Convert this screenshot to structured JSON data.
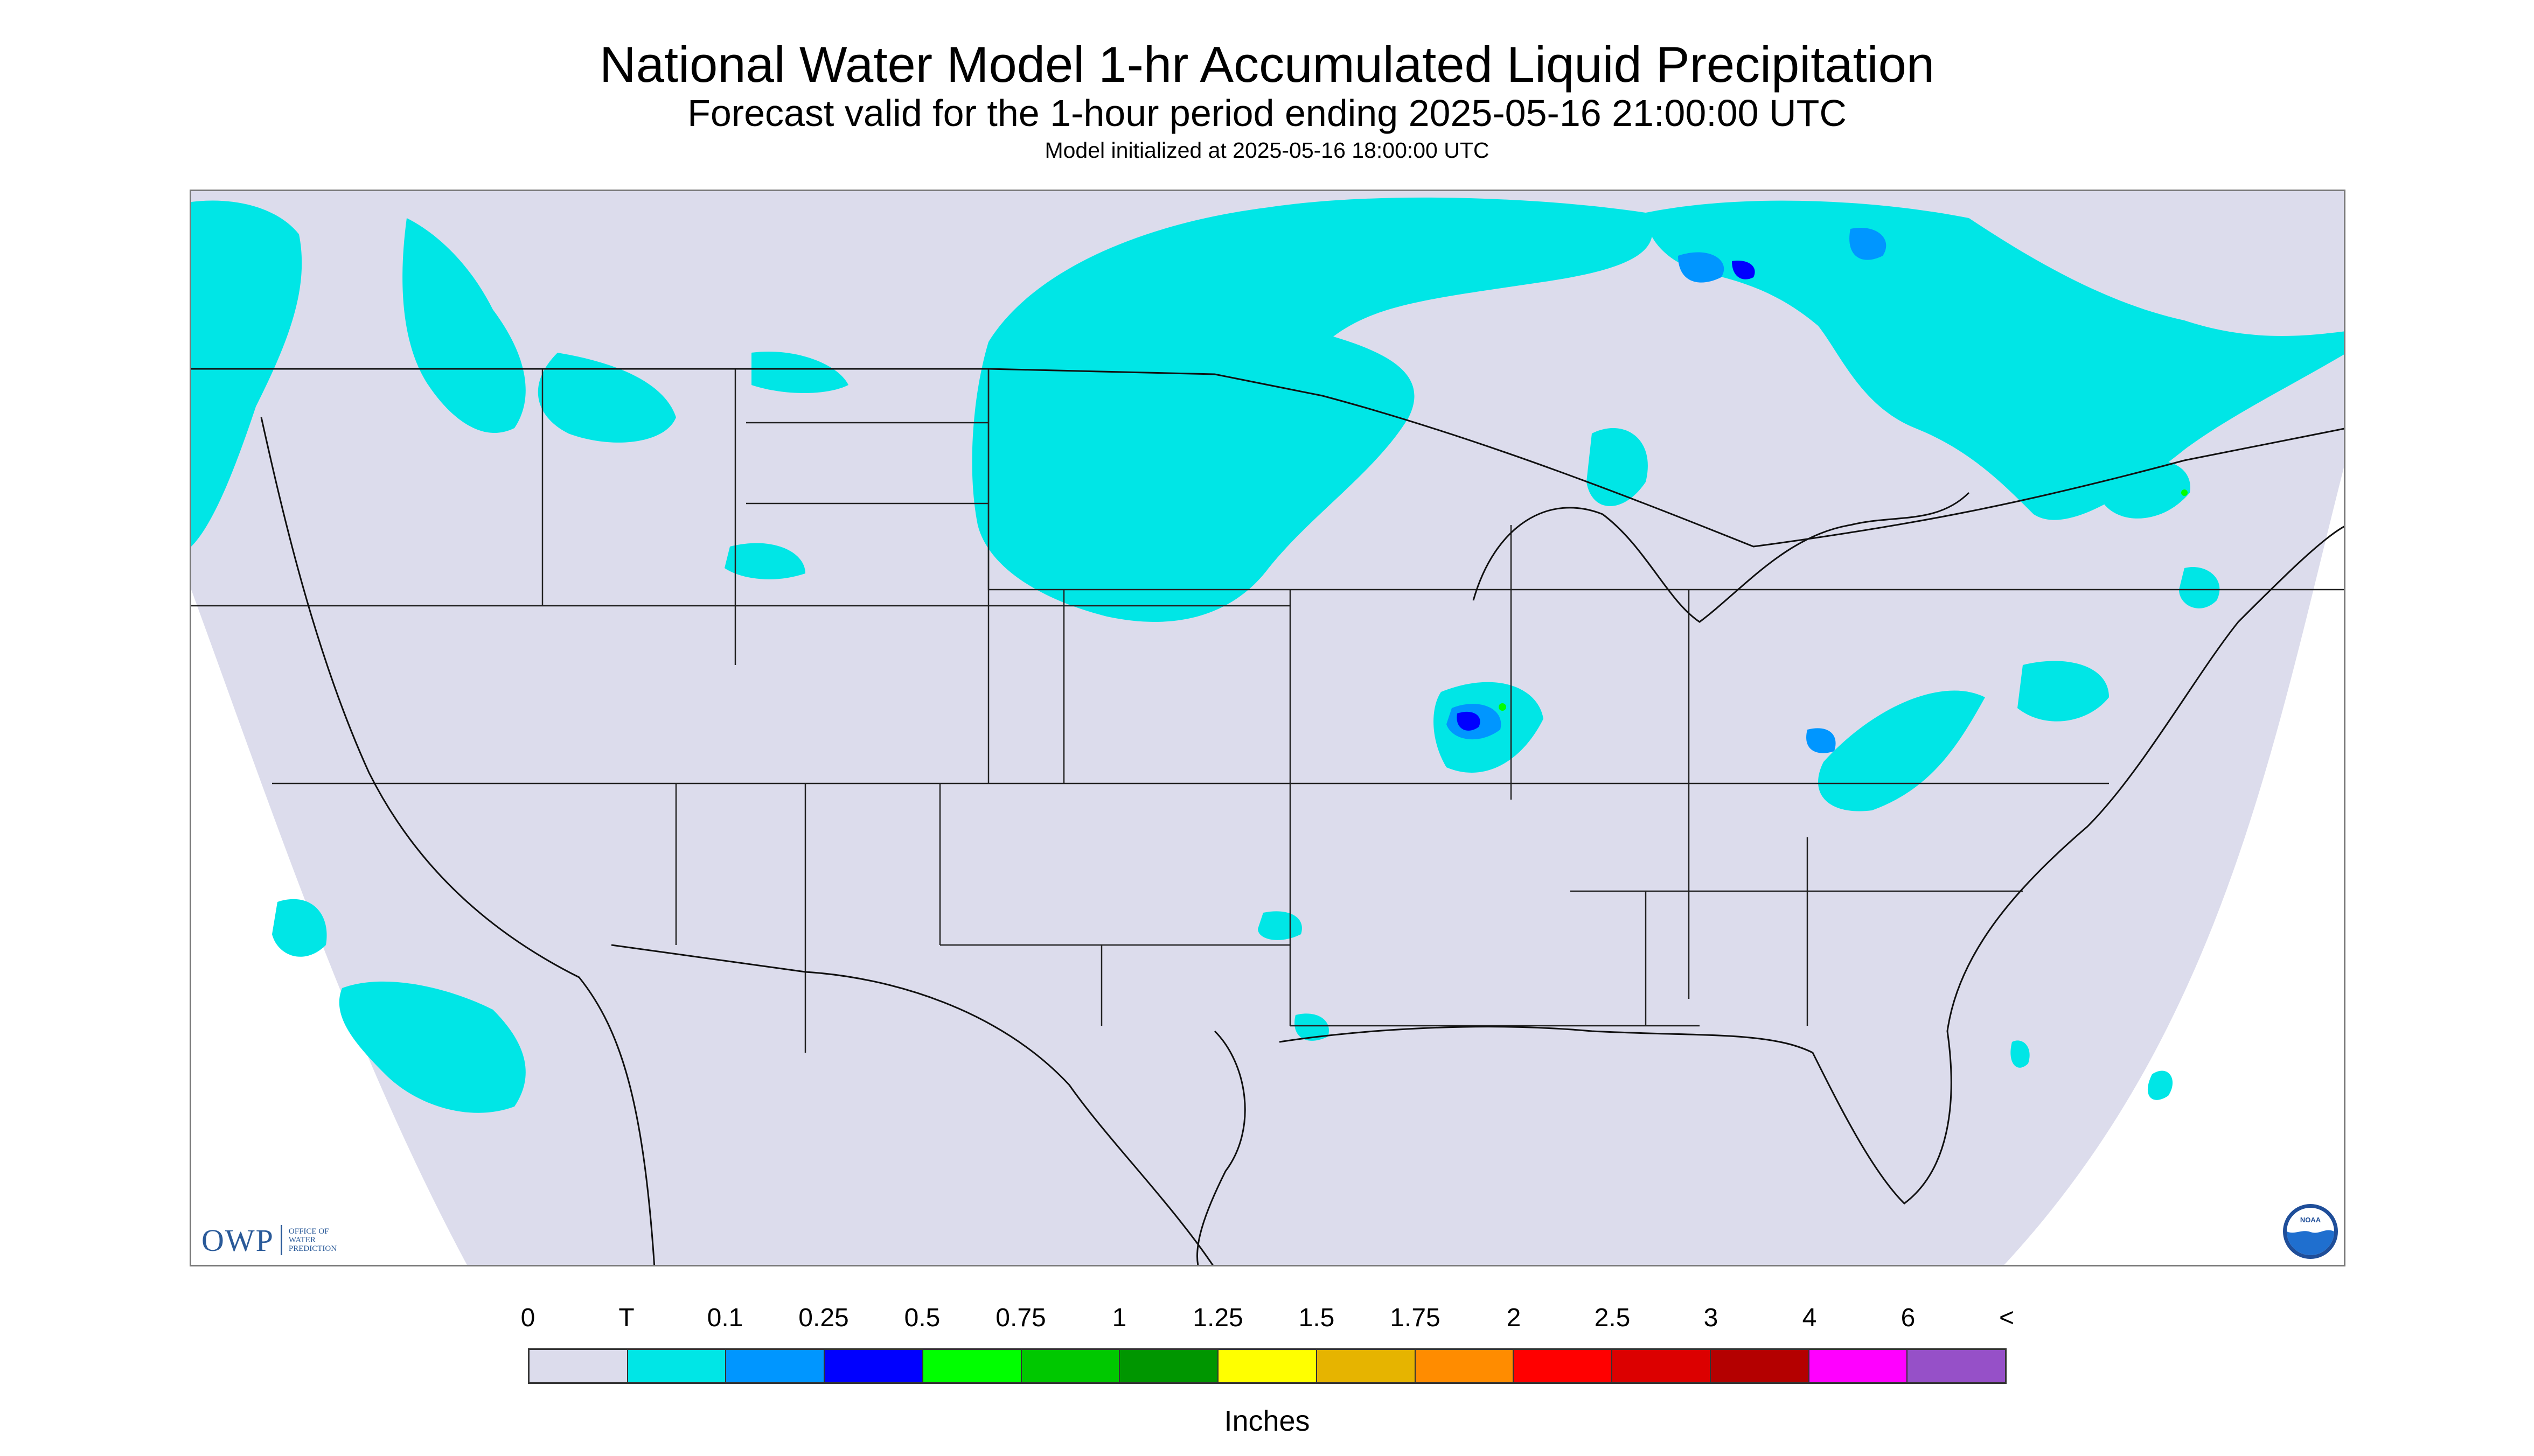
{
  "header": {
    "title": "National Water Model 1-hr Accumulated Liquid Precipitation",
    "subtitle": "Forecast valid for the 1-hour period ending 2025-05-16 21:00:00 UTC",
    "init_line": "Model initialized at 2025-05-16 18:00:00 UTC"
  },
  "map": {
    "background_color": "#dcdcec",
    "boundary_color": "#222222",
    "region": "Contiguous United States"
  },
  "logos": {
    "owp_mark": "OWP",
    "owp_text": "OFFICE OF\nWATER\nPREDICTION",
    "noaa_text": "NOAA"
  },
  "legend": {
    "labels": [
      "0",
      "T",
      "0.1",
      "0.25",
      "0.5",
      "0.75",
      "1",
      "1.25",
      "1.5",
      "1.75",
      "2",
      "2.5",
      "3",
      "4",
      "6",
      "<"
    ],
    "colors": [
      "#dcdcec",
      "#00e6e6",
      "#0096ff",
      "#0000ff",
      "#00ff00",
      "#00c800",
      "#009600",
      "#ffff00",
      "#e6b400",
      "#ff8c00",
      "#ff0000",
      "#dc0000",
      "#b40000",
      "#ff00ff",
      "#9650c8"
    ],
    "units": "Inches"
  }
}
